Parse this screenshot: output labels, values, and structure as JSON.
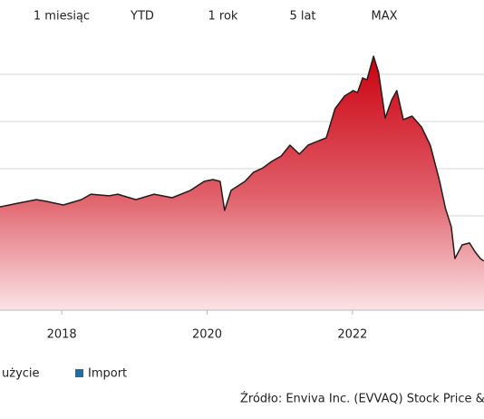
{
  "ranges": [
    "1 miesiąc",
    "YTD",
    "1 rok",
    "5 lat",
    "MAX"
  ],
  "chart_data": {
    "type": "area",
    "color": "#d0021b",
    "x": [
      2017.15,
      2017.4,
      2017.65,
      2017.78,
      2018.02,
      2018.27,
      2018.4,
      2018.65,
      2018.77,
      2019.02,
      2019.27,
      2019.52,
      2019.77,
      2019.96,
      2020.08,
      2020.18,
      2020.24,
      2020.33,
      2020.52,
      2020.64,
      2020.77,
      2020.89,
      2021.02,
      2021.14,
      2021.27,
      2021.39,
      2021.51,
      2021.64,
      2021.76,
      2021.89,
      2022.01,
      2022.07,
      2022.14,
      2022.2,
      2022.29,
      2022.36,
      2022.45,
      2022.54,
      2022.61,
      2022.7,
      2022.82,
      2022.95,
      2023.07,
      2023.2,
      2023.28,
      2023.36,
      2023.41,
      2023.51,
      2023.61,
      2023.69,
      2023.76,
      2023.81
    ],
    "values": [
      43.8,
      45.4,
      46.9,
      46.2,
      44.6,
      46.9,
      49.2,
      48.5,
      49.2,
      46.9,
      49.2,
      47.7,
      50.8,
      54.6,
      55.4,
      54.6,
      42.3,
      50.8,
      54.6,
      58.5,
      60.4,
      63.1,
      65.4,
      70.0,
      66.2,
      70.0,
      71.5,
      73.1,
      85.4,
      90.8,
      93.1,
      92.3,
      98.5,
      97.7,
      107.7,
      100.8,
      81.5,
      89.2,
      93.1,
      80.8,
      82.3,
      77.7,
      70.0,
      54.6,
      43.1,
      35.4,
      21.9,
      27.7,
      28.5,
      24.6,
      21.9,
      20.8
    ],
    "xlim": [
      2017.15,
      2023.81
    ],
    "xticks": [
      2018,
      2020,
      2022
    ],
    "ylim": [
      0,
      120
    ],
    "legend": [
      "użycie",
      "Import"
    ],
    "legend_colors": [
      "#d0021b",
      "#1f6f9f"
    ],
    "source": "Źródło: Enviva Inc. (EVVAQ) Stock Price &"
  }
}
